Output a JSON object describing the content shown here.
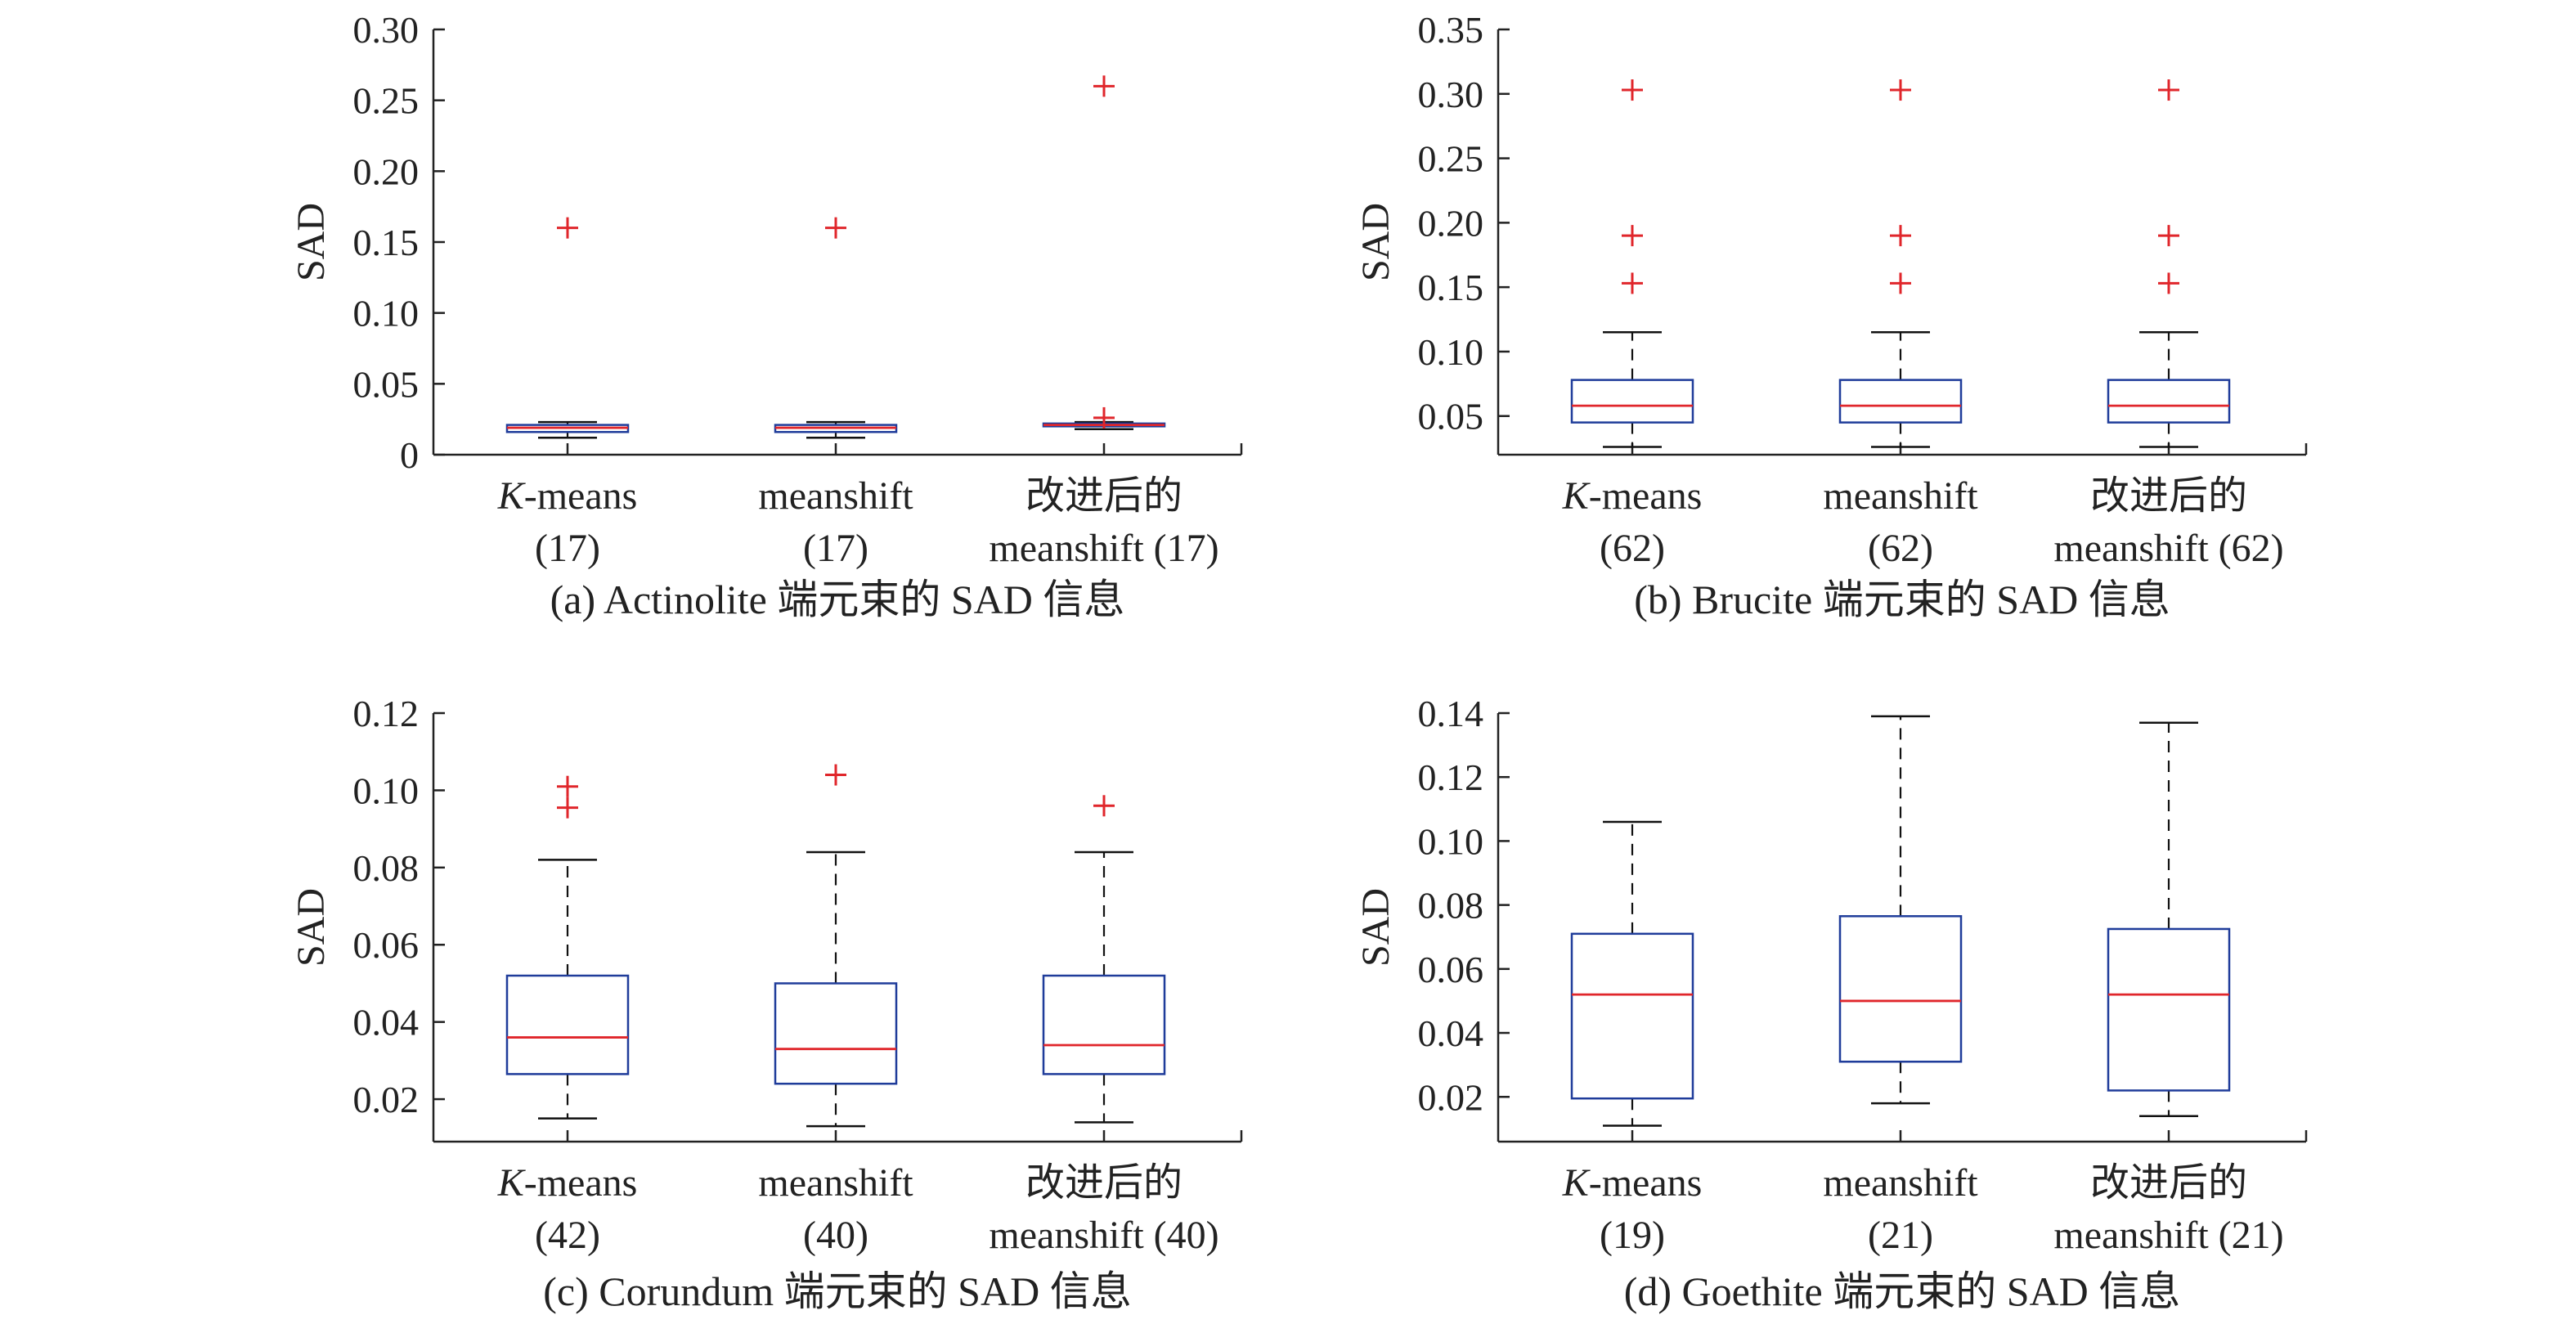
{
  "chart_data": [
    {
      "type": "box",
      "panel": "a",
      "caption": "(a) Actinolite 端元束的 SAD 信息",
      "ylabel": "SAD",
      "ylim": [
        0,
        0.3
      ],
      "yticks": [
        0,
        0.05,
        0.1,
        0.15,
        0.2,
        0.25,
        0.3
      ],
      "ytick_labels": [
        "0",
        "0.05",
        "0.10",
        "0.15",
        "0.20",
        "0.25",
        "0.30"
      ],
      "categories": [
        {
          "line1": "K",
          "line1_suffix": "-means",
          "italic_prefix": true,
          "line2": "(17)"
        },
        {
          "line1": "meanshift",
          "line2": "(17)"
        },
        {
          "line1": "改进后的",
          "line2": "meanshift (17)"
        }
      ],
      "boxes": [
        {
          "whisker_low": 0.012,
          "q1": 0.016,
          "median": 0.019,
          "q3": 0.021,
          "whisker_high": 0.023,
          "outliers": [
            0.16
          ]
        },
        {
          "whisker_low": 0.012,
          "q1": 0.016,
          "median": 0.019,
          "q3": 0.021,
          "whisker_high": 0.023,
          "outliers": [
            0.16
          ]
        },
        {
          "whisker_low": 0.018,
          "q1": 0.02,
          "median": 0.021,
          "q3": 0.022,
          "whisker_high": 0.023,
          "outliers": [
            0.026,
            0.26
          ]
        }
      ]
    },
    {
      "type": "box",
      "panel": "b",
      "caption": "(b) Brucite 端元束的 SAD 信息",
      "ylabel": "SAD",
      "ylim": [
        0.02,
        0.35
      ],
      "yticks": [
        0.05,
        0.1,
        0.15,
        0.2,
        0.25,
        0.3,
        0.35
      ],
      "ytick_labels": [
        "0.05",
        "0.10",
        "0.15",
        "0.20",
        "0.25",
        "0.30",
        "0.35"
      ],
      "categories": [
        {
          "line1": "K",
          "line1_suffix": "-means",
          "italic_prefix": true,
          "line2": "(62)"
        },
        {
          "line1": "meanshift",
          "line2": "(62)"
        },
        {
          "line1": "改进后的",
          "line2": "meanshift (62)"
        }
      ],
      "boxes": [
        {
          "whisker_low": 0.026,
          "q1": 0.045,
          "median": 0.058,
          "q3": 0.078,
          "whisker_high": 0.115,
          "outliers": [
            0.153,
            0.19,
            0.303
          ]
        },
        {
          "whisker_low": 0.026,
          "q1": 0.045,
          "median": 0.058,
          "q3": 0.078,
          "whisker_high": 0.115,
          "outliers": [
            0.153,
            0.19,
            0.303
          ]
        },
        {
          "whisker_low": 0.026,
          "q1": 0.045,
          "median": 0.058,
          "q3": 0.078,
          "whisker_high": 0.115,
          "outliers": [
            0.153,
            0.19,
            0.303
          ]
        }
      ]
    },
    {
      "type": "box",
      "panel": "c",
      "caption": "(c) Corundum 端元束的 SAD 信息",
      "ylabel": "SAD",
      "ylim": [
        0.009,
        0.12
      ],
      "yticks": [
        0.02,
        0.04,
        0.06,
        0.08,
        0.1,
        0.12
      ],
      "ytick_labels": [
        "0.02",
        "0.04",
        "0.06",
        "0.08",
        "0.10",
        "0.12"
      ],
      "categories": [
        {
          "line1": "K",
          "line1_suffix": "-means",
          "italic_prefix": true,
          "line2": "(42)"
        },
        {
          "line1": "meanshift",
          "line2": "(40)"
        },
        {
          "line1": "改进后的",
          "line2": "meanshift (40)"
        }
      ],
      "boxes": [
        {
          "whisker_low": 0.015,
          "q1": 0.0265,
          "median": 0.036,
          "q3": 0.052,
          "whisker_high": 0.082,
          "outliers": [
            0.0955,
            0.101
          ]
        },
        {
          "whisker_low": 0.013,
          "q1": 0.024,
          "median": 0.033,
          "q3": 0.05,
          "whisker_high": 0.084,
          "outliers": [
            0.104
          ]
        },
        {
          "whisker_low": 0.014,
          "q1": 0.0265,
          "median": 0.034,
          "q3": 0.052,
          "whisker_high": 0.084,
          "outliers": [
            0.096
          ]
        }
      ]
    },
    {
      "type": "box",
      "panel": "d",
      "caption": "(d) Goethite 端元束的 SAD 信息",
      "ylabel": "SAD",
      "ylim": [
        0.006,
        0.14
      ],
      "yticks": [
        0.02,
        0.04,
        0.06,
        0.08,
        0.1,
        0.12,
        0.14
      ],
      "ytick_labels": [
        "0.02",
        "0.04",
        "0.06",
        "0.08",
        "0.10",
        "0.12",
        "0.14"
      ],
      "categories": [
        {
          "line1": "K",
          "line1_suffix": "-means",
          "italic_prefix": true,
          "line2": "(19)"
        },
        {
          "line1": "meanshift",
          "line2": "(21)"
        },
        {
          "line1": "改进后的",
          "line2": "meanshift (21)"
        }
      ],
      "boxes": [
        {
          "whisker_low": 0.011,
          "q1": 0.0195,
          "median": 0.052,
          "q3": 0.071,
          "whisker_high": 0.106,
          "outliers": []
        },
        {
          "whisker_low": 0.018,
          "q1": 0.031,
          "median": 0.05,
          "q3": 0.0765,
          "whisker_high": 0.139,
          "outliers": []
        },
        {
          "whisker_low": 0.014,
          "q1": 0.022,
          "median": 0.052,
          "q3": 0.0725,
          "whisker_high": 0.137,
          "outliers": []
        }
      ]
    }
  ],
  "colors": {
    "box": "#1f3c9a",
    "median": "#e0262b",
    "outlier": "#e0262b",
    "whisker": "#111111",
    "axis": "#222222"
  }
}
